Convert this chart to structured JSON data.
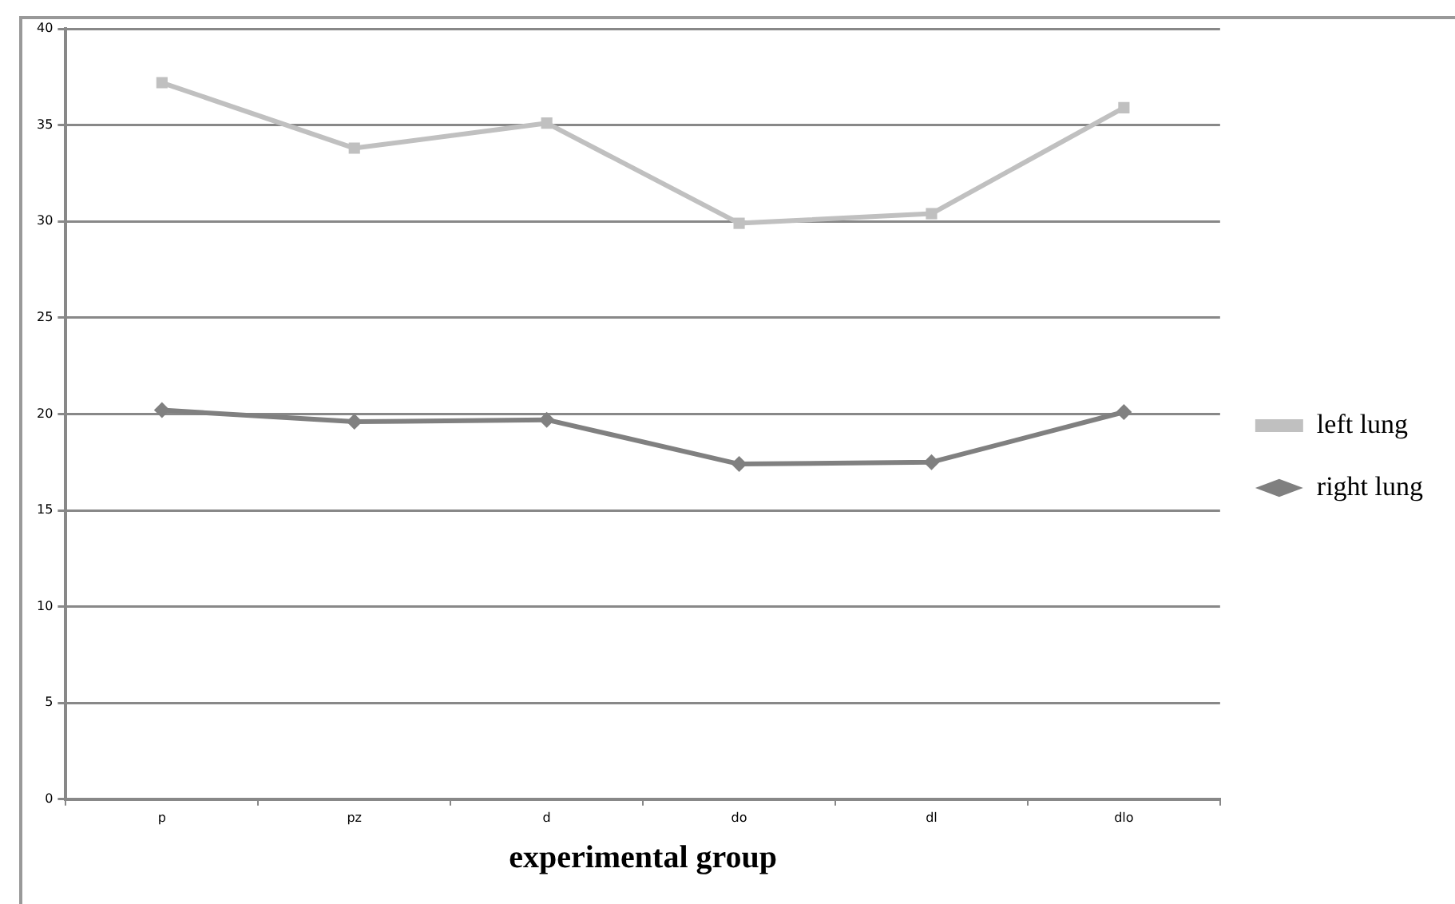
{
  "chart_data": {
    "type": "line",
    "xlabel": "experimental group",
    "categories": [
      "p",
      "pz",
      "d",
      "do",
      "dl",
      "dlo"
    ],
    "series": [
      {
        "name": "left lung",
        "color": "#c0c0c0",
        "marker": "square",
        "values": [
          37.2,
          33.8,
          35.1,
          29.9,
          30.4,
          35.9
        ]
      },
      {
        "name": "right lung",
        "color": "#808080",
        "marker": "diamond",
        "values": [
          20.2,
          19.6,
          19.7,
          17.4,
          17.5,
          20.1
        ]
      }
    ],
    "ylim": [
      0,
      40
    ],
    "yticks": [
      0,
      5,
      10,
      15,
      20,
      25,
      30,
      35,
      40
    ],
    "grid": "y",
    "legend": "right"
  }
}
